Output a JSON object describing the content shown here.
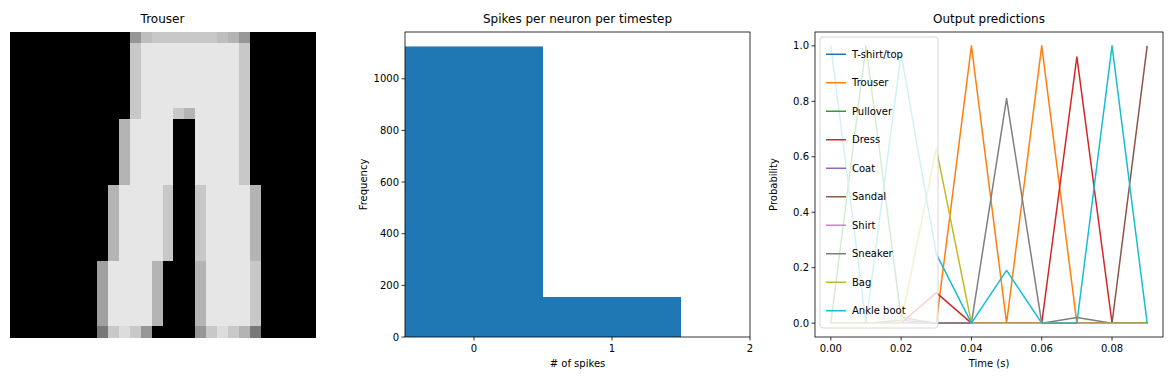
{
  "chart_data": [
    {
      "type": "image",
      "title": "Trouser",
      "tick_labels": false,
      "vmin": 0,
      "vmax": 255,
      "cells": [
        [
          0,
          0,
          0,
          0,
          0,
          0,
          0,
          0,
          0,
          0,
          0,
          150,
          190,
          200,
          200,
          200,
          200,
          200,
          200,
          190,
          180,
          150,
          0,
          0,
          0,
          0,
          0,
          0
        ],
        [
          0,
          0,
          0,
          0,
          0,
          0,
          0,
          0,
          0,
          0,
          0,
          200,
          230,
          230,
          230,
          230,
          230,
          230,
          230,
          230,
          230,
          200,
          0,
          0,
          0,
          0,
          0,
          0
        ],
        [
          0,
          0,
          0,
          0,
          0,
          0,
          0,
          0,
          0,
          0,
          0,
          200,
          230,
          230,
          230,
          230,
          230,
          230,
          230,
          230,
          230,
          200,
          0,
          0,
          0,
          0,
          0,
          0
        ],
        [
          0,
          0,
          0,
          0,
          0,
          0,
          0,
          0,
          0,
          0,
          0,
          200,
          230,
          230,
          230,
          230,
          230,
          230,
          230,
          230,
          230,
          200,
          0,
          0,
          0,
          0,
          0,
          0
        ],
        [
          0,
          0,
          0,
          0,
          0,
          0,
          0,
          0,
          0,
          0,
          0,
          200,
          230,
          230,
          230,
          230,
          230,
          230,
          230,
          230,
          230,
          200,
          0,
          0,
          0,
          0,
          0,
          0
        ],
        [
          0,
          0,
          0,
          0,
          0,
          0,
          0,
          0,
          0,
          0,
          0,
          200,
          230,
          230,
          230,
          230,
          230,
          230,
          230,
          230,
          230,
          200,
          0,
          0,
          0,
          0,
          0,
          0
        ],
        [
          0,
          0,
          0,
          0,
          0,
          0,
          0,
          0,
          0,
          0,
          0,
          200,
          230,
          230,
          230,
          230,
          230,
          230,
          230,
          230,
          230,
          200,
          0,
          0,
          0,
          0,
          0,
          0
        ],
        [
          0,
          0,
          0,
          0,
          0,
          0,
          0,
          0,
          0,
          0,
          0,
          200,
          230,
          230,
          230,
          200,
          180,
          230,
          230,
          230,
          230,
          200,
          0,
          0,
          0,
          0,
          0,
          0
        ],
        [
          0,
          0,
          0,
          0,
          0,
          0,
          0,
          0,
          0,
          0,
          180,
          230,
          230,
          230,
          230,
          0,
          0,
          230,
          230,
          230,
          230,
          200,
          0,
          0,
          0,
          0,
          0,
          0
        ],
        [
          0,
          0,
          0,
          0,
          0,
          0,
          0,
          0,
          0,
          0,
          180,
          230,
          230,
          230,
          230,
          0,
          0,
          230,
          230,
          230,
          230,
          200,
          0,
          0,
          0,
          0,
          0,
          0
        ],
        [
          0,
          0,
          0,
          0,
          0,
          0,
          0,
          0,
          0,
          0,
          180,
          230,
          230,
          230,
          230,
          0,
          0,
          230,
          230,
          230,
          230,
          200,
          0,
          0,
          0,
          0,
          0,
          0
        ],
        [
          0,
          0,
          0,
          0,
          0,
          0,
          0,
          0,
          0,
          0,
          180,
          230,
          230,
          230,
          230,
          0,
          0,
          230,
          230,
          230,
          230,
          200,
          0,
          0,
          0,
          0,
          0,
          0
        ],
        [
          0,
          0,
          0,
          0,
          0,
          0,
          0,
          0,
          0,
          0,
          180,
          230,
          230,
          230,
          230,
          0,
          0,
          230,
          230,
          230,
          230,
          200,
          0,
          0,
          0,
          0,
          0,
          0
        ],
        [
          0,
          0,
          0,
          0,
          0,
          0,
          0,
          0,
          0,
          0,
          180,
          230,
          230,
          230,
          230,
          0,
          0,
          230,
          230,
          230,
          230,
          200,
          0,
          0,
          0,
          0,
          0,
          0
        ],
        [
          0,
          0,
          0,
          0,
          0,
          0,
          0,
          0,
          0,
          180,
          230,
          230,
          230,
          230,
          200,
          0,
          0,
          200,
          230,
          230,
          230,
          230,
          180,
          0,
          0,
          0,
          0,
          0
        ],
        [
          0,
          0,
          0,
          0,
          0,
          0,
          0,
          0,
          0,
          180,
          230,
          230,
          230,
          230,
          200,
          0,
          0,
          200,
          230,
          230,
          230,
          230,
          180,
          0,
          0,
          0,
          0,
          0
        ],
        [
          0,
          0,
          0,
          0,
          0,
          0,
          0,
          0,
          0,
          180,
          230,
          230,
          230,
          230,
          200,
          0,
          0,
          200,
          230,
          230,
          230,
          230,
          180,
          0,
          0,
          0,
          0,
          0
        ],
        [
          0,
          0,
          0,
          0,
          0,
          0,
          0,
          0,
          0,
          180,
          230,
          230,
          230,
          230,
          200,
          0,
          0,
          200,
          230,
          230,
          230,
          230,
          180,
          0,
          0,
          0,
          0,
          0
        ],
        [
          0,
          0,
          0,
          0,
          0,
          0,
          0,
          0,
          0,
          180,
          230,
          230,
          230,
          230,
          200,
          0,
          0,
          200,
          230,
          230,
          230,
          230,
          180,
          0,
          0,
          0,
          0,
          0
        ],
        [
          0,
          0,
          0,
          0,
          0,
          0,
          0,
          0,
          0,
          180,
          230,
          230,
          230,
          230,
          200,
          0,
          0,
          200,
          230,
          230,
          230,
          230,
          180,
          0,
          0,
          0,
          0,
          0
        ],
        [
          0,
          0,
          0,
          0,
          0,
          0,
          0,
          0,
          0,
          180,
          230,
          230,
          230,
          230,
          200,
          0,
          0,
          200,
          230,
          230,
          230,
          230,
          180,
          0,
          0,
          0,
          0,
          0
        ],
        [
          0,
          0,
          0,
          0,
          0,
          0,
          0,
          0,
          160,
          230,
          230,
          230,
          230,
          180,
          0,
          0,
          0,
          180,
          230,
          230,
          230,
          230,
          200,
          0,
          0,
          0,
          0,
          0
        ],
        [
          0,
          0,
          0,
          0,
          0,
          0,
          0,
          0,
          160,
          230,
          230,
          230,
          230,
          180,
          0,
          0,
          0,
          180,
          230,
          230,
          230,
          230,
          200,
          0,
          0,
          0,
          0,
          0
        ],
        [
          0,
          0,
          0,
          0,
          0,
          0,
          0,
          0,
          160,
          230,
          230,
          230,
          230,
          180,
          0,
          0,
          0,
          180,
          230,
          230,
          230,
          230,
          200,
          0,
          0,
          0,
          0,
          0
        ],
        [
          0,
          0,
          0,
          0,
          0,
          0,
          0,
          0,
          160,
          230,
          230,
          230,
          230,
          180,
          0,
          0,
          0,
          180,
          230,
          230,
          230,
          230,
          200,
          0,
          0,
          0,
          0,
          0
        ],
        [
          0,
          0,
          0,
          0,
          0,
          0,
          0,
          0,
          160,
          230,
          230,
          230,
          230,
          180,
          0,
          0,
          0,
          180,
          230,
          230,
          230,
          230,
          200,
          0,
          0,
          0,
          0,
          0
        ],
        [
          0,
          0,
          0,
          0,
          0,
          0,
          0,
          0,
          160,
          230,
          230,
          230,
          230,
          180,
          0,
          0,
          0,
          180,
          230,
          230,
          230,
          230,
          200,
          0,
          0,
          0,
          0,
          0
        ],
        [
          0,
          0,
          0,
          0,
          0,
          0,
          0,
          0,
          120,
          200,
          220,
          200,
          150,
          0,
          0,
          0,
          0,
          150,
          200,
          220,
          200,
          180,
          120,
          0,
          0,
          0,
          0,
          0
        ]
      ]
    },
    {
      "type": "histogram",
      "title": "Spikes per neuron per timestep",
      "x_label": "# of spikes",
      "y_label": "Frequency",
      "bins": [
        -0.5,
        0.5,
        1.5
      ],
      "counts": [
        1125,
        155
      ],
      "color": "#1f77b4",
      "xlim": [
        -0.5,
        2.0
      ],
      "xticks": [
        0,
        1,
        2
      ],
      "ylim": [
        0,
        1181
      ],
      "yticks": [
        0,
        200,
        400,
        600,
        800,
        1000
      ]
    },
    {
      "type": "line",
      "title": "Output predictions",
      "x_label": "Time (s)",
      "y_label": "Probability",
      "legend": "upper left",
      "x": [
        0,
        0.01,
        0.02,
        0.03,
        0.04,
        0.05,
        0.06,
        0.07,
        0.08,
        0.09
      ],
      "xlim": [
        -0.0045,
        0.0945
      ],
      "xticks": [
        {
          "value": 0,
          "label": "0.00"
        },
        {
          "value": 0.02,
          "label": "0.02"
        },
        {
          "value": 0.04,
          "label": "0.04"
        },
        {
          "value": 0.06,
          "label": "0.06"
        },
        {
          "value": 0.08,
          "label": "0.08"
        }
      ],
      "ylim": [
        -0.05,
        1.05
      ],
      "yticks": [
        {
          "value": 0,
          "label": "0.0"
        },
        {
          "value": 0.2,
          "label": "0.2"
        },
        {
          "value": 0.4,
          "label": "0.4"
        },
        {
          "value": 0.6,
          "label": "0.6"
        },
        {
          "value": 0.8,
          "label": "0.8"
        },
        {
          "value": 1,
          "label": "1.0"
        }
      ],
      "series": [
        {
          "name": "T-shirt/top",
          "color": "#1f77b4",
          "values": [
            0,
            0,
            0,
            0,
            0,
            0,
            0,
            0,
            0,
            0
          ]
        },
        {
          "name": "Trouser",
          "color": "#ff7f0e",
          "values": [
            0,
            0,
            0,
            0,
            1.0,
            0,
            1.0,
            0,
            0,
            0
          ]
        },
        {
          "name": "Pullover",
          "color": "#2ca02c",
          "values": [
            0,
            1.0,
            0.02,
            0,
            0,
            0,
            0,
            0,
            0,
            0
          ]
        },
        {
          "name": "Dress",
          "color": "#d62728",
          "values": [
            0,
            0,
            0,
            0.11,
            0,
            0,
            0,
            0.96,
            0,
            0
          ]
        },
        {
          "name": "Coat",
          "color": "#9467bd",
          "values": [
            0,
            0,
            0,
            0,
            0,
            0,
            0,
            0,
            0,
            0
          ]
        },
        {
          "name": "Sandal",
          "color": "#8c564b",
          "values": [
            0,
            0,
            0,
            0,
            0,
            0,
            0,
            0,
            0,
            1.0
          ]
        },
        {
          "name": "Shirt",
          "color": "#e377c2",
          "values": [
            0,
            0,
            0,
            0,
            0,
            0,
            0,
            0,
            0,
            0
          ]
        },
        {
          "name": "Sneaker",
          "color": "#7f7f7f",
          "values": [
            0,
            0,
            0.01,
            0,
            0,
            0.81,
            0,
            0.02,
            0,
            0
          ]
        },
        {
          "name": "Bag",
          "color": "#bcbd22",
          "values": [
            0,
            0,
            0,
            0.63,
            0,
            0,
            0,
            0,
            0,
            0
          ]
        },
        {
          "name": "Ankle boot",
          "color": "#17becf",
          "values": [
            1.0,
            0,
            0.97,
            0.25,
            0,
            0.19,
            0,
            0,
            1.0,
            0
          ]
        }
      ]
    }
  ]
}
